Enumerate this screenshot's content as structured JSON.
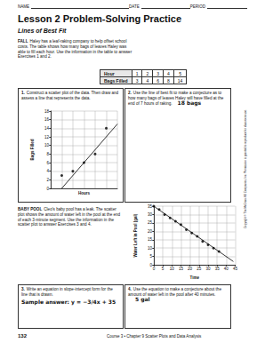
{
  "header": {
    "fields": [
      "NAME",
      "DATE",
      "PERIOD"
    ]
  },
  "title": "Lesson 2 Problem-Solving Practice",
  "subtitle": "Lines of Best Fit",
  "intro": {
    "label": "FALL",
    "text": "Haley has a leaf-raking company to help offset school costs. The table shows how many bags of leaves Haley was able to fill each hour. Use the information in the table to answer Exercises 1 and 2."
  },
  "table": {
    "rows": [
      [
        "Hour",
        "1",
        "2",
        "3",
        "4",
        "5"
      ],
      [
        "Bags Filled",
        "3",
        "4",
        "6",
        "8",
        "14"
      ]
    ]
  },
  "exercises": [
    {
      "number": "1.",
      "text": "Construct a scatter plot of the data. Then draw and assess a line that represents the data."
    },
    {
      "number": "2.",
      "text": "Use the line of best fit to make a conjecture as to how many bags of leaves Haley will have filled at the end of 7 hours of raking.",
      "answer": "18 bags"
    },
    {
      "number": "3.",
      "text": "Write an equation in slope-intercept form for the line that is drawn.",
      "answer": "Sample answer: y = −3/4x + 35"
    },
    {
      "number": "4.",
      "text": "Use the equation to make a conjecture about the amount of water left in the pool after 40 minutes.",
      "answer": "5 gal"
    }
  ],
  "section2": {
    "label": "BABY POOL",
    "text": "Cleo's baby pool has a leak. The scatter plot shows the amount of water left in the pool at the end of each 3-minute segment. Use the information in the scatter plot to answer Exercises 3 and 4."
  },
  "chart_data": [
    {
      "type": "scatter",
      "x_label": "Hours",
      "y_label": "Bags Filled",
      "x": [
        1,
        2,
        3,
        4,
        5
      ],
      "values": [
        3,
        4,
        6,
        8,
        14
      ],
      "color": "#000000",
      "fit_line": {
        "x": [
          1,
          6
        ],
        "values": [
          0,
          15
        ]
      },
      "xlim": [
        0,
        6
      ],
      "xticks": [
        0,
        1,
        2,
        3,
        4,
        5,
        6
      ],
      "ylim": [
        0,
        18
      ],
      "yticks": [
        0,
        2,
        4,
        6,
        8,
        10,
        12,
        14,
        16,
        18
      ],
      "grid": true,
      "tick_labels": "y"
    },
    {
      "type": "scatter",
      "x_label": "Time",
      "y_label": "Water Left in Pool (gal)",
      "x": [
        0,
        3,
        6,
        9,
        12,
        15,
        18,
        21,
        24,
        27,
        30,
        33,
        36
      ],
      "values": [
        35,
        33,
        30,
        28,
        26,
        24,
        21,
        19,
        17,
        14,
        12,
        10,
        8
      ],
      "color": "#000000",
      "fit_line": {
        "x": [
          0,
          44
        ],
        "values": [
          35,
          2
        ]
      },
      "xlim": [
        0,
        45
      ],
      "xticks": [
        0,
        5,
        10,
        15,
        20,
        25,
        30,
        35,
        40,
        45
      ],
      "ylim": [
        0,
        35
      ],
      "yticks": [
        0,
        5,
        10,
        15,
        20,
        25,
        30,
        35
      ],
      "grid": true
    }
  ],
  "footer": {
    "page": "132",
    "course": "Course 3 • Chapter 9 Scatter Plots and Data Analysis"
  },
  "copyright": "Copyright © The McGraw-Hill Companies, Inc. Permission is granted to reproduce for classroom use."
}
